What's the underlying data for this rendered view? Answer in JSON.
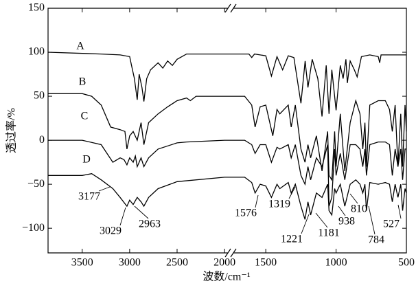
{
  "chart_data": {
    "type": "line",
    "ylabel": "透过率/%",
    "xlabel": "波数/cm⁻¹",
    "xlim": [
      3860,
      500
    ],
    "xbreak": [
      1950,
      1740
    ],
    "xticks": [
      3500,
      3000,
      2500,
      2000,
      1500,
      1000,
      500
    ],
    "ylim": [
      -128,
      150
    ],
    "yticks": [
      {
        "value": -100,
        "label": "−100"
      },
      {
        "value": -50,
        "label": "−50"
      },
      0,
      50,
      100,
      150
    ],
    "annotations": [
      3177,
      3029,
      2963,
      1576,
      1319,
      1221,
      1181,
      938,
      810,
      784,
      527
    ],
    "series": [
      {
        "name": "A",
        "color": "#000000",
        "x": [
          3860,
          3300,
          3100,
          3000,
          2980,
          2950,
          2920,
          2900,
          2870,
          2850,
          2820,
          2780,
          2700,
          2650,
          2600,
          2550,
          2500,
          2450,
          2400,
          2200,
          1950,
          1740,
          1620,
          1600,
          1580,
          1500,
          1460,
          1420,
          1380,
          1340,
          1300,
          1250,
          1220,
          1200,
          1170,
          1130,
          1100,
          1070,
          1050,
          1030,
          1000,
          970,
          950,
          930,
          920,
          900,
          870,
          850,
          820,
          760,
          700,
          690,
          680,
          600,
          500
        ],
        "values": [
          100,
          98,
          97,
          95,
          85,
          70,
          46,
          75,
          60,
          44,
          70,
          80,
          88,
          82,
          90,
          85,
          92,
          95,
          98,
          98,
          98,
          98,
          98,
          94,
          98,
          96,
          73,
          95,
          80,
          96,
          94,
          42,
          90,
          60,
          92,
          70,
          27,
          85,
          30,
          80,
          34,
          85,
          70,
          92,
          65,
          90,
          80,
          72,
          95,
          97,
          95,
          88,
          97,
          97,
          97
        ]
      },
      {
        "name": "B",
        "color": "#000000",
        "x": [
          3860,
          3500,
          3400,
          3300,
          3200,
          3100,
          3050,
          3029,
          3000,
          2963,
          2920,
          2880,
          2850,
          2800,
          2700,
          2600,
          2500,
          2400,
          2360,
          2300,
          1950,
          1740,
          1650,
          1600,
          1576,
          1540,
          1500,
          1450,
          1420,
          1400,
          1340,
          1319,
          1290,
          1250,
          1221,
          1200,
          1181,
          1140,
          1100,
          1060,
          1050,
          1030,
          1010,
          1000,
          970,
          938,
          900,
          860,
          830,
          810,
          795,
          784,
          760,
          700,
          650,
          620,
          600,
          580,
          560,
          540,
          527,
          510,
          500
        ],
        "values": [
          53,
          53,
          50,
          40,
          15,
          12,
          10,
          -10,
          5,
          10,
          0,
          20,
          -5,
          20,
          30,
          38,
          45,
          48,
          45,
          50,
          50,
          50,
          50,
          40,
          15,
          38,
          40,
          5,
          35,
          30,
          40,
          15,
          40,
          -10,
          -25,
          -5,
          -20,
          5,
          -35,
          10,
          -40,
          -45,
          10,
          -30,
          30,
          -35,
          20,
          45,
          30,
          -10,
          20,
          -30,
          40,
          45,
          45,
          35,
          10,
          40,
          -30,
          30,
          -30,
          40,
          10
        ]
      },
      {
        "name": "C",
        "color": "#000000",
        "x": [
          3860,
          3500,
          3300,
          3177,
          3100,
          3060,
          3029,
          3000,
          2963,
          2940,
          2920,
          2880,
          2850,
          2800,
          2700,
          2500,
          2400,
          2000,
          1950,
          1740,
          1650,
          1600,
          1576,
          1540,
          1500,
          1460,
          1420,
          1400,
          1340,
          1319,
          1290,
          1250,
          1221,
          1200,
          1181,
          1140,
          1100,
          1060,
          1050,
          1030,
          1010,
          1000,
          970,
          938,
          900,
          860,
          830,
          810,
          795,
          784,
          760,
          700,
          650,
          620,
          600,
          580,
          560,
          540,
          527,
          510,
          500
        ],
        "values": [
          0,
          0,
          -5,
          -25,
          -20,
          -22,
          -28,
          -20,
          -25,
          -18,
          -30,
          -20,
          -30,
          -20,
          -10,
          -3,
          -2,
          0,
          0,
          0,
          0,
          -5,
          -15,
          -5,
          -5,
          -25,
          -8,
          -10,
          -5,
          -20,
          -5,
          -40,
          -50,
          -30,
          -45,
          -20,
          -30,
          -5,
          -75,
          -65,
          -10,
          -40,
          -15,
          -45,
          -5,
          -5,
          -10,
          -30,
          -10,
          -40,
          -5,
          -2,
          -2,
          -5,
          -40,
          -10,
          -30,
          -10,
          -45,
          -10,
          -10
        ]
      },
      {
        "name": "D",
        "color": "#000000",
        "x": [
          3860,
          3500,
          3400,
          3300,
          3177,
          3100,
          3029,
          3000,
          2963,
          2920,
          2880,
          2850,
          2800,
          2700,
          2500,
          2000,
          1950,
          1740,
          1650,
          1600,
          1576,
          1540,
          1500,
          1460,
          1420,
          1400,
          1340,
          1319,
          1290,
          1250,
          1221,
          1200,
          1181,
          1140,
          1100,
          1060,
          1050,
          1030,
          1010,
          1000,
          970,
          938,
          900,
          860,
          830,
          810,
          795,
          784,
          760,
          700,
          650,
          620,
          600,
          580,
          560,
          540,
          527,
          510,
          500
        ],
        "values": [
          -40,
          -40,
          -38,
          -45,
          -55,
          -65,
          -75,
          -68,
          -73,
          -65,
          -70,
          -75,
          -65,
          -55,
          -47,
          -42,
          -42,
          -42,
          -42,
          -48,
          -60,
          -50,
          -52,
          -65,
          -50,
          -55,
          -48,
          -60,
          -50,
          -75,
          -90,
          -70,
          -85,
          -60,
          -65,
          -50,
          -80,
          -85,
          -55,
          -60,
          -50,
          -75,
          -50,
          -45,
          -50,
          -60,
          -50,
          -80,
          -48,
          -50,
          -48,
          -50,
          -70,
          -50,
          -65,
          -50,
          -80,
          -55,
          -60
        ]
      }
    ]
  }
}
